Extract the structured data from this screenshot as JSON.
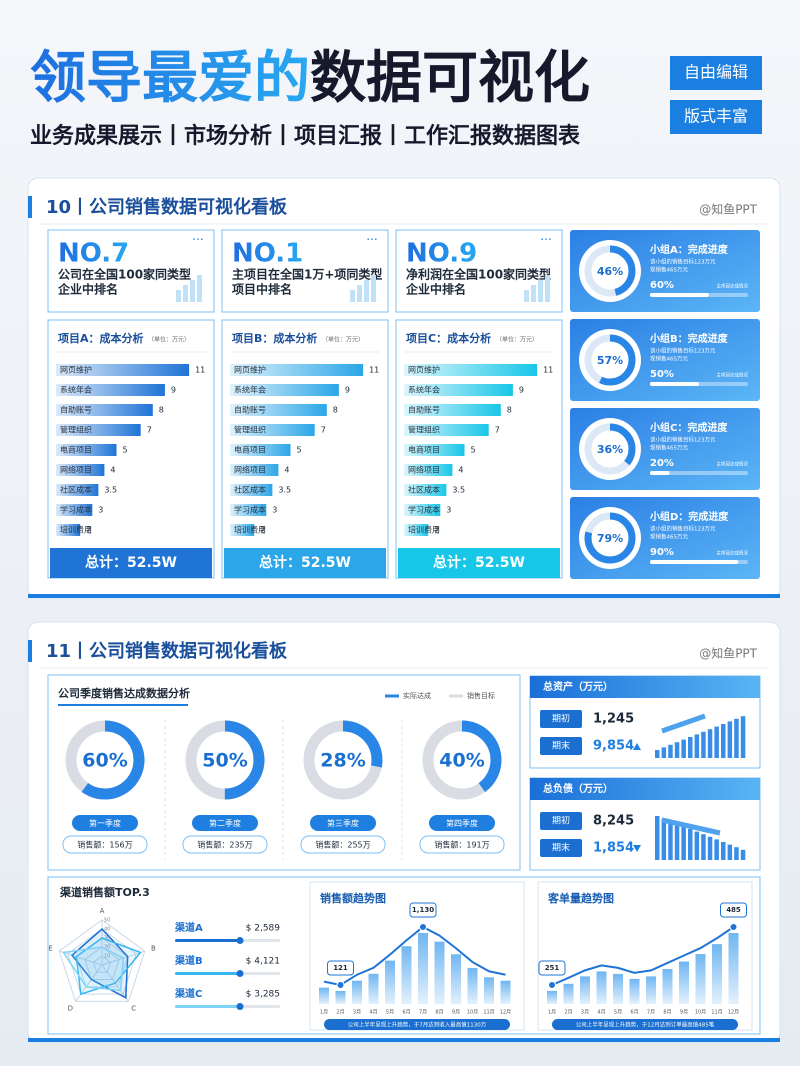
{
  "header": {
    "title_blue": "领导最爱的",
    "title_dark": "数据可视化",
    "subtitle": "业务成果展示丨市场分析丨项目汇报丨工作汇报数据图表",
    "badges": [
      "自由编辑",
      "版式丰富"
    ]
  },
  "panel1": {
    "title": "10丨公司销售数据可视化看板",
    "credit": "@知鱼PPT",
    "ranks": [
      {
        "rank": "NO.7",
        "text": [
          "公司在全国100家同类型",
          "企业中排名"
        ]
      },
      {
        "rank": "NO.1",
        "text": [
          "主项目在全国1万+项同类型",
          "项目中排名"
        ]
      },
      {
        "rank": "NO.9",
        "text": [
          "净利润在全国100家同类型",
          "企业中排名"
        ]
      }
    ],
    "unit": "（单位：万元）",
    "categories": [
      "网页维护",
      "系统年会",
      "自助账号",
      "管理组织",
      "电商项目",
      "网络项目",
      "社区成本",
      "学习成本",
      "培训费用"
    ],
    "projects": [
      {
        "name": "项目A：成本分析",
        "color": "#1f74d6",
        "values": [
          11,
          9,
          8,
          7,
          5,
          4,
          3.5,
          3,
          2
        ],
        "total": "总计：52.5W"
      },
      {
        "name": "项目B：成本分析",
        "color": "#2ba6e8",
        "values": [
          11,
          9,
          8,
          7,
          5,
          4,
          3.5,
          3,
          2
        ],
        "total": "总计：52.5W"
      },
      {
        "name": "项目C：成本分析",
        "color": "#18c6e8",
        "values": [
          11,
          9,
          8,
          7,
          5,
          4,
          3.5,
          3,
          2
        ],
        "total": "总计：52.5W"
      }
    ],
    "group_bar_caption": "主项目达成情况",
    "groups": [
      {
        "name": "小组A：完成进度",
        "desc": [
          "该小组的销售目标123万元",
          "现销售465万元"
        ],
        "ring": {
          "value": 46,
          "label": "46%"
        },
        "bar": {
          "value": 60,
          "label": "60%"
        }
      },
      {
        "name": "小组B：完成进度",
        "desc": [
          "该小组的销售目标123万元",
          "现销售465万元"
        ],
        "ring": {
          "value": 57,
          "label": "57%"
        },
        "bar": {
          "value": 50,
          "label": "50%"
        }
      },
      {
        "name": "小组C：完成进度",
        "desc": [
          "该小组的销售目标123万元",
          "现销售465万元"
        ],
        "ring": {
          "value": 36,
          "label": "36%"
        },
        "bar": {
          "value": 20,
          "label": "20%"
        }
      },
      {
        "name": "小组D：完成进度",
        "desc": [
          "该小组的销售目标123万元",
          "现销售465万元"
        ],
        "ring": {
          "value": 79,
          "label": "79%"
        },
        "bar": {
          "value": 90,
          "label": "90%"
        }
      }
    ]
  },
  "panel2": {
    "title": "11丨公司销售数据可视化看板",
    "credit": "@知鱼PPT",
    "quarters": {
      "title": "公司季度销售达成数据分析",
      "legend": [
        {
          "name": "实际达成",
          "color": "#2a86e6"
        },
        {
          "name": "销售目标",
          "color": "#d9dde3"
        }
      ],
      "items": [
        {
          "name": "第一季度",
          "rate": {
            "value": 60,
            "label": "60%"
          },
          "sales": "销售额：156万"
        },
        {
          "name": "第二季度",
          "rate": {
            "value": 50,
            "label": "50%"
          },
          "sales": "销售额：235万"
        },
        {
          "name": "第三季度",
          "rate": {
            "value": 28,
            "label": "28%"
          },
          "sales": "销售额：255万"
        },
        {
          "name": "第四季度",
          "rate": {
            "value": 40,
            "label": "40%"
          },
          "sales": "销售额：191万"
        }
      ]
    },
    "balances": [
      {
        "title": "总资产（万元）",
        "trend": "up",
        "rows": [
          {
            "label": "期初",
            "value": "1,245"
          },
          {
            "label": "期末",
            "value": "9,854"
          }
        ]
      },
      {
        "title": "总负债（万元）",
        "trend": "down",
        "rows": [
          {
            "label": "期初",
            "value": "8,245"
          },
          {
            "label": "期末",
            "value": "1,854"
          }
        ]
      }
    ],
    "radar": {
      "title": "渠道销售额TOP.3",
      "axes": [
        "A",
        "B",
        "C",
        "D",
        "E"
      ],
      "ticks": [
        10,
        20,
        30,
        40,
        50
      ],
      "lim": [
        0,
        50
      ],
      "series": [
        {
          "name": "渠道A",
          "amount": "$ 2,589",
          "color": "#1a6fd0",
          "values": [
            40,
            30,
            45,
            20,
            35
          ]
        },
        {
          "name": "渠道B",
          "amount": "$ 4,121",
          "color": "#38b6f0",
          "values": [
            30,
            45,
            25,
            40,
            30
          ]
        },
        {
          "name": "渠道C",
          "amount": "$ 3,285",
          "color": "#7fd3f7",
          "values": [
            20,
            25,
            35,
            30,
            45
          ]
        }
      ]
    },
    "sales_trend": {
      "title": "销售额趋势图",
      "x": [
        "1月",
        "2月",
        "3月",
        "4月",
        "5月",
        "6月",
        "7月",
        "8月",
        "9月",
        "10月",
        "11月",
        "12月"
      ],
      "values": [
        180,
        121,
        300,
        420,
        650,
        900,
        1130,
        980,
        760,
        520,
        360,
        300
      ],
      "value_labels": [
        null,
        "121",
        null,
        null,
        null,
        null,
        "1,130",
        null,
        null,
        null,
        null,
        null
      ],
      "caption": "公司上半年呈现上升趋势，于7月达到收入最高值1130万"
    },
    "order_trend": {
      "title": "客单量趋势图",
      "x": [
        "1月",
        "2月",
        "3月",
        "4月",
        "5月",
        "6月",
        "7月",
        "8月",
        "9月",
        "10月",
        "11月",
        "12月"
      ],
      "values": [
        251,
        280,
        310,
        330,
        320,
        300,
        310,
        340,
        370,
        400,
        440,
        485
      ],
      "value_labels": [
        "251",
        null,
        null,
        null,
        null,
        null,
        null,
        null,
        null,
        null,
        null,
        "485"
      ],
      "caption": "公司上半年呈现上升趋势，于12月达到订单最高值485笔"
    }
  }
}
